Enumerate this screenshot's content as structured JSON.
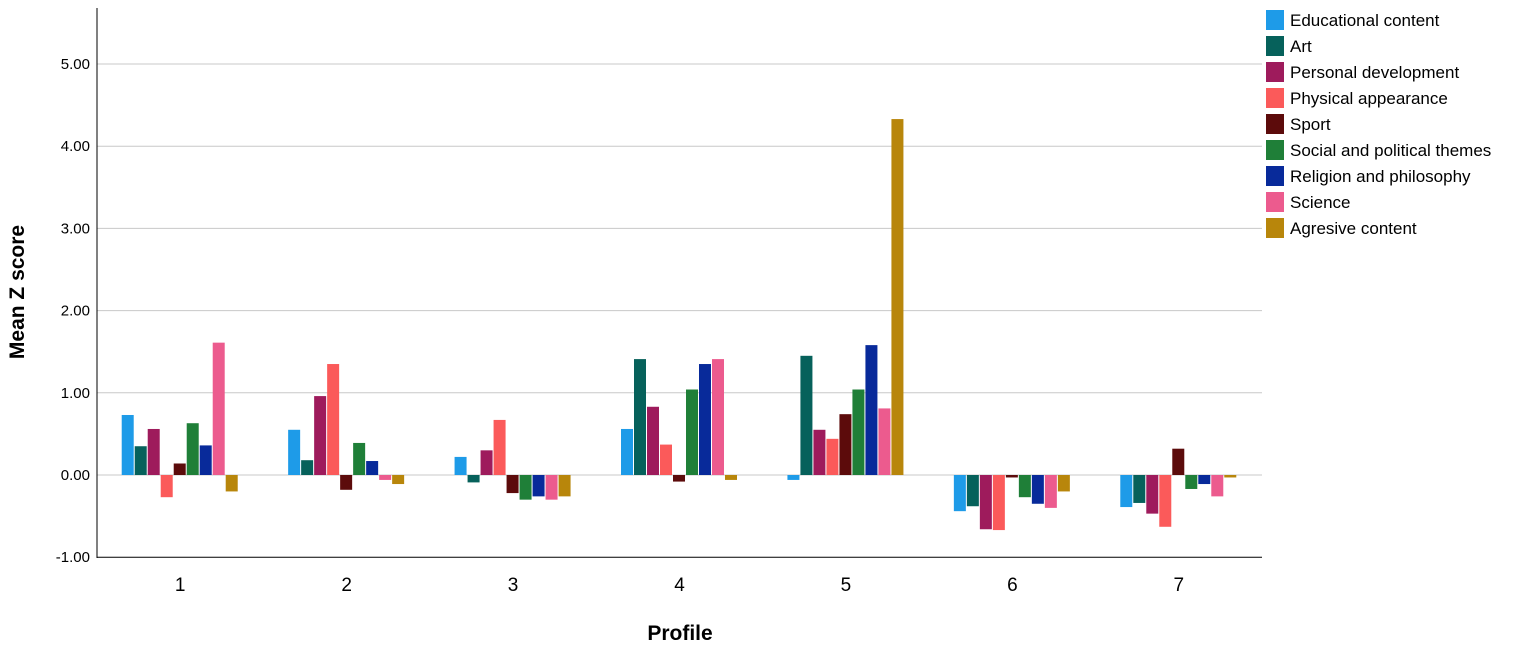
{
  "chart_data": {
    "type": "bar",
    "title": "",
    "xlabel": "Profile",
    "ylabel": "Mean Z score",
    "ylim": [
      -1.0,
      5.6
    ],
    "yticks": [
      "-1.00",
      "0.00",
      "1.00",
      "2.00",
      "3.00",
      "4.00",
      "5.00"
    ],
    "categories": [
      "1",
      "2",
      "3",
      "4",
      "5",
      "6",
      "7"
    ],
    "grid": true,
    "legend_position": "top-right",
    "series": [
      {
        "name": "Educational content",
        "color": "#1e9be8",
        "values": [
          0.73,
          0.55,
          0.22,
          0.56,
          -0.06,
          -0.44,
          -0.39
        ]
      },
      {
        "name": "Art",
        "color": "#06615b",
        "values": [
          0.35,
          0.18,
          -0.09,
          1.41,
          1.45,
          -0.38,
          -0.34
        ]
      },
      {
        "name": "Personal development",
        "color": "#9e1b5c",
        "values": [
          0.56,
          0.96,
          0.3,
          0.83,
          0.55,
          -0.66,
          -0.47
        ]
      },
      {
        "name": "Physical appearance",
        "color": "#fb5a5a",
        "values": [
          -0.27,
          1.35,
          0.67,
          0.37,
          0.44,
          -0.67,
          -0.63
        ]
      },
      {
        "name": "Sport",
        "color": "#5c0b0b",
        "values": [
          0.14,
          -0.18,
          -0.22,
          -0.08,
          0.74,
          -0.03,
          0.32
        ]
      },
      {
        "name": "Social and political themes",
        "color": "#1f7f38",
        "values": [
          0.63,
          0.39,
          -0.3,
          1.04,
          1.04,
          -0.27,
          -0.17
        ]
      },
      {
        "name": "Religion and philosophy",
        "color": "#082a9a",
        "values": [
          0.36,
          0.17,
          -0.26,
          1.35,
          1.58,
          -0.35,
          -0.11
        ]
      },
      {
        "name": "Science",
        "color": "#ec5b8e",
        "values": [
          1.61,
          -0.06,
          -0.3,
          1.41,
          0.81,
          -0.4,
          -0.26
        ]
      },
      {
        "name": "Agresive content",
        "color": "#b8860b",
        "values": [
          -0.2,
          -0.11,
          -0.26,
          -0.06,
          4.33,
          -0.2,
          -0.03
        ]
      }
    ]
  }
}
